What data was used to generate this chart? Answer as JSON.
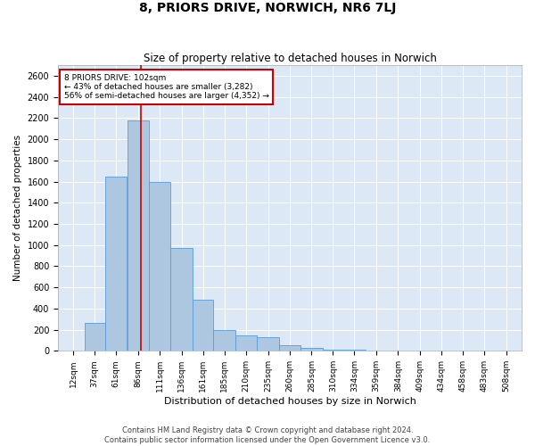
{
  "title": "8, PRIORS DRIVE, NORWICH, NR6 7LJ",
  "subtitle": "Size of property relative to detached houses in Norwich",
  "xlabel": "Distribution of detached houses by size in Norwich",
  "ylabel": "Number of detached properties",
  "annotation_text": "8 PRIORS DRIVE: 102sqm\n← 43% of detached houses are smaller (3,282)\n56% of semi-detached houses are larger (4,352) →",
  "bin_labels": [
    "12sqm",
    "37sqm",
    "61sqm",
    "86sqm",
    "111sqm",
    "136sqm",
    "161sqm",
    "185sqm",
    "210sqm",
    "235sqm",
    "260sqm",
    "285sqm",
    "310sqm",
    "334sqm",
    "359sqm",
    "384sqm",
    "409sqm",
    "434sqm",
    "458sqm",
    "483sqm",
    "508sqm"
  ],
  "bin_edges": [
    12,
    37,
    61,
    86,
    111,
    136,
    161,
    185,
    210,
    235,
    260,
    285,
    310,
    334,
    359,
    384,
    409,
    434,
    458,
    483,
    508
  ],
  "bar_heights": [
    5,
    265,
    1650,
    2175,
    1600,
    970,
    480,
    200,
    150,
    130,
    50,
    30,
    10,
    10,
    5,
    5,
    2,
    0,
    2,
    0,
    0
  ],
  "bar_color": "#aec7e0",
  "bar_edge_color": "#5b9bd5",
  "vline_x": 102,
  "vline_color": "#cc0000",
  "annotation_box_color": "#cc0000",
  "background_color": "#dce8f5",
  "ylim": [
    0,
    2700
  ],
  "yticks": [
    0,
    200,
    400,
    600,
    800,
    1000,
    1200,
    1400,
    1600,
    1800,
    2000,
    2200,
    2400,
    2600
  ],
  "footer_line1": "Contains HM Land Registry data © Crown copyright and database right 2024.",
  "footer_line2": "Contains public sector information licensed under the Open Government Licence v3.0."
}
